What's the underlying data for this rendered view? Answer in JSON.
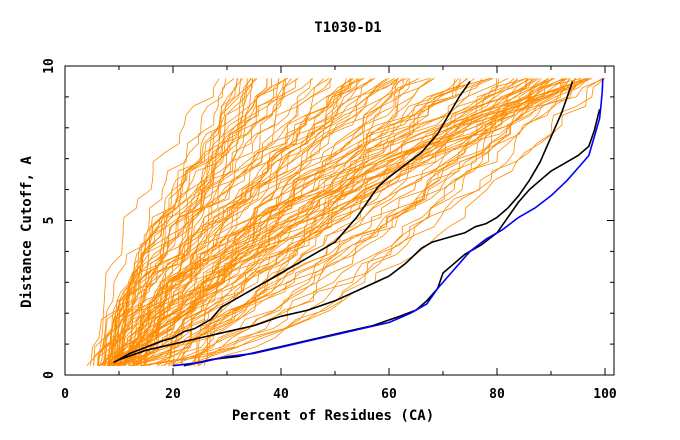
{
  "chart_data": {
    "type": "line",
    "title": "T1030-D1",
    "xlabel": "Percent of Residues (CA)",
    "ylabel": "Distance Cutoff, A",
    "xlim": [
      0,
      100
    ],
    "ylim": [
      0,
      10
    ],
    "x_ticks": [
      0,
      20,
      40,
      60,
      80,
      100
    ],
    "y_ticks": [
      0,
      5,
      10
    ],
    "grid": false,
    "legend": "none",
    "colors": {
      "orange": "#ff8c00",
      "black": "#000000",
      "blue": "#0000ff"
    },
    "highlight_series": [
      {
        "color": "#000000",
        "x": [
          9,
          12,
          15,
          18,
          20,
          22,
          24,
          26,
          27,
          28,
          29,
          30,
          33,
          36,
          40,
          44,
          48,
          50,
          52,
          54,
          56,
          58,
          60,
          63,
          66,
          69,
          71,
          73,
          75
        ],
        "y": [
          0.4,
          0.7,
          0.9,
          1.1,
          1.2,
          1.4,
          1.5,
          1.7,
          1.8,
          2.0,
          2.2,
          2.3,
          2.6,
          2.9,
          3.3,
          3.7,
          4.1,
          4.3,
          4.7,
          5.1,
          5.6,
          6.1,
          6.4,
          6.8,
          7.2,
          7.8,
          8.4,
          9.0,
          9.5
        ]
      },
      {
        "color": "#000000",
        "x": [
          10,
          15,
          20,
          25,
          30,
          35,
          40,
          45,
          50,
          55,
          60,
          63,
          66,
          68,
          70,
          72,
          74,
          76,
          78,
          80,
          82,
          84,
          86,
          88,
          90,
          92,
          94
        ],
        "y": [
          0.5,
          0.8,
          1.0,
          1.2,
          1.4,
          1.6,
          1.9,
          2.1,
          2.4,
          2.8,
          3.2,
          3.6,
          4.1,
          4.3,
          4.4,
          4.5,
          4.6,
          4.8,
          4.9,
          5.1,
          5.4,
          5.8,
          6.3,
          6.9,
          7.7,
          8.5,
          9.5
        ]
      },
      {
        "color": "#000000",
        "x": [
          22,
          27,
          32,
          37,
          42,
          47,
          52,
          57,
          62,
          65,
          67,
          69,
          70,
          72,
          74,
          77,
          80,
          82,
          84,
          86,
          88,
          90,
          92,
          95,
          97,
          98,
          99
        ],
        "y": [
          0.3,
          0.5,
          0.6,
          0.8,
          1.0,
          1.2,
          1.4,
          1.6,
          1.9,
          2.1,
          2.4,
          2.8,
          3.3,
          3.6,
          3.9,
          4.2,
          4.6,
          5.1,
          5.6,
          6.0,
          6.3,
          6.6,
          6.8,
          7.1,
          7.4,
          7.9,
          8.6
        ]
      }
    ],
    "blue_series": {
      "color": "#0000ff",
      "x": [
        20,
        25,
        30,
        35,
        40,
        45,
        50,
        55,
        60,
        64,
        67,
        69,
        72,
        75,
        78,
        81,
        84,
        87,
        90,
        93,
        95,
        97,
        98,
        99,
        99.3,
        99.5,
        99.6
      ],
      "y": [
        0.3,
        0.4,
        0.6,
        0.7,
        0.9,
        1.1,
        1.3,
        1.5,
        1.7,
        2.0,
        2.3,
        2.8,
        3.4,
        4.0,
        4.4,
        4.7,
        5.1,
        5.4,
        5.8,
        6.3,
        6.7,
        7.1,
        7.7,
        8.3,
        8.8,
        9.2,
        9.6
      ]
    },
    "orange_bundle": {
      "color": "#ff8c00",
      "count": 120,
      "clusters": [
        {
          "count": 45,
          "x_at_0.3": [
            4,
            10
          ],
          "x_at_9.6": [
            28,
            58
          ]
        },
        {
          "count": 30,
          "x_at_0.3": [
            6,
            14
          ],
          "x_at_9.6": [
            60,
            82
          ]
        },
        {
          "count": 45,
          "x_at_0.3": [
            8,
            24
          ],
          "x_at_9.6": [
            82,
            100
          ]
        }
      ]
    }
  }
}
